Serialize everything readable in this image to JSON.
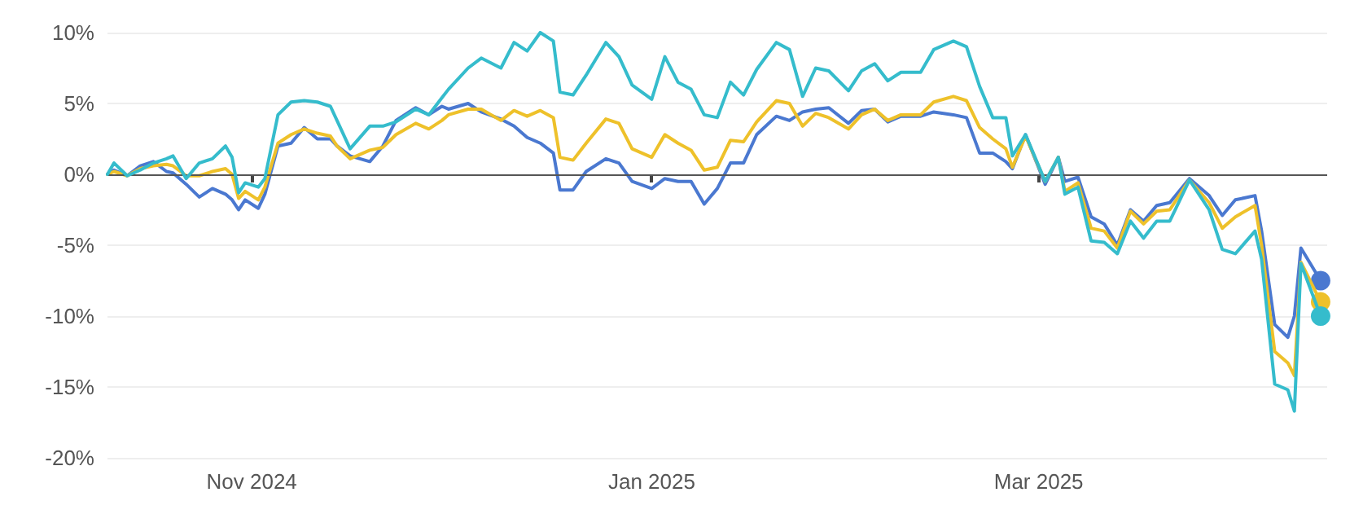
{
  "chart_data": {
    "type": "line",
    "x": [
      "2024-10-10",
      "2024-10-11",
      "2024-10-13",
      "2024-10-15",
      "2024-10-17",
      "2024-10-19",
      "2024-10-20",
      "2024-10-22",
      "2024-10-24",
      "2024-10-26",
      "2024-10-28",
      "2024-10-29",
      "2024-10-30",
      "2024-10-31",
      "2024-11-02",
      "2024-11-03",
      "2024-11-05",
      "2024-11-07",
      "2024-11-09",
      "2024-11-11",
      "2024-11-13",
      "2024-11-14",
      "2024-11-16",
      "2024-11-19",
      "2024-11-21",
      "2024-11-23",
      "2024-11-26",
      "2024-11-28",
      "2024-11-30",
      "2024-12-01",
      "2024-12-04",
      "2024-12-06",
      "2024-12-09",
      "2024-12-11",
      "2024-12-13",
      "2024-12-15",
      "2024-12-17",
      "2024-12-18",
      "2024-12-20",
      "2024-12-22",
      "2024-12-25",
      "2024-12-27",
      "2024-12-29",
      "2025-01-01",
      "2025-01-03",
      "2025-01-05",
      "2025-01-07",
      "2025-01-09",
      "2025-01-11",
      "2025-01-13",
      "2025-01-15",
      "2025-01-17",
      "2025-01-20",
      "2025-01-22",
      "2025-01-24",
      "2025-01-26",
      "2025-01-28",
      "2025-01-31",
      "2025-02-02",
      "2025-02-04",
      "2025-02-06",
      "2025-02-08",
      "2025-02-11",
      "2025-02-13",
      "2025-02-16",
      "2025-02-18",
      "2025-02-20",
      "2025-02-22",
      "2025-02-24",
      "2025-02-25",
      "2025-02-27",
      "2025-03-02",
      "2025-03-04",
      "2025-03-05",
      "2025-03-07",
      "2025-03-09",
      "2025-03-11",
      "2025-03-13",
      "2025-03-15",
      "2025-03-17",
      "2025-03-19",
      "2025-03-21",
      "2025-03-24",
      "2025-03-27",
      "2025-03-29",
      "2025-03-31",
      "2025-04-03",
      "2025-04-04",
      "2025-04-06",
      "2025-04-08",
      "2025-04-09",
      "2025-04-10",
      "2025-04-13"
    ],
    "series": [
      {
        "color": "#4a78d0",
        "values": [
          0,
          0.3,
          -0.1,
          0.6,
          0.9,
          0.2,
          0.1,
          -0.7,
          -1.6,
          -1.0,
          -1.4,
          -1.8,
          -2.5,
          -1.8,
          -2.4,
          -1.4,
          2.0,
          2.2,
          3.3,
          2.5,
          2.5,
          2.0,
          1.3,
          0.9,
          2.0,
          3.8,
          4.7,
          4.2,
          4.8,
          4.6,
          5.0,
          4.4,
          3.9,
          3.4,
          2.6,
          2.2,
          1.5,
          -1.1,
          -1.1,
          0.2,
          1.1,
          0.8,
          -0.5,
          -1.0,
          -0.3,
          -0.5,
          -0.5,
          -2.1,
          -1.0,
          0.8,
          0.8,
          2.8,
          4.1,
          3.8,
          4.4,
          4.6,
          4.7,
          3.6,
          4.5,
          4.6,
          3.7,
          4.1,
          4.1,
          4.4,
          4.2,
          4.0,
          1.5,
          1.5,
          0.9,
          0.4,
          2.8,
          -0.7,
          1.2,
          -0.5,
          -0.2,
          -3.0,
          -3.5,
          -5.0,
          -2.5,
          -3.3,
          -2.2,
          -2.0,
          -0.3,
          -1.5,
          -2.9,
          -1.8,
          -1.5,
          -4.0,
          -10.6,
          -11.5,
          -10.0,
          -5.2,
          -7.5
        ]
      },
      {
        "color": "#eec12a",
        "values": [
          0,
          0.2,
          -0.1,
          0.4,
          0.6,
          0.7,
          0.6,
          -0.1,
          -0.1,
          0.2,
          0.4,
          0.0,
          -1.7,
          -1.2,
          -1.8,
          -0.9,
          2.2,
          2.8,
          3.2,
          2.9,
          2.7,
          2.0,
          1.1,
          1.7,
          1.9,
          2.8,
          3.6,
          3.2,
          3.8,
          4.2,
          4.6,
          4.6,
          3.8,
          4.5,
          4.1,
          4.5,
          4.0,
          1.2,
          1.0,
          2.2,
          3.9,
          3.6,
          1.8,
          1.2,
          2.8,
          2.2,
          1.7,
          0.3,
          0.5,
          2.4,
          2.3,
          3.7,
          5.2,
          5.0,
          3.4,
          4.3,
          4.0,
          3.2,
          4.2,
          4.6,
          3.8,
          4.2,
          4.2,
          5.1,
          5.5,
          5.2,
          3.3,
          2.5,
          1.8,
          0.5,
          2.7,
          -0.5,
          1.2,
          -1.2,
          -0.6,
          -3.8,
          -4.0,
          -5.2,
          -2.6,
          -3.5,
          -2.6,
          -2.5,
          -0.4,
          -2.0,
          -3.8,
          -3.0,
          -2.2,
          -5.0,
          -12.5,
          -13.3,
          -14.2,
          -6.2,
          -9.0
        ]
      },
      {
        "color": "#35bccc",
        "values": [
          0,
          0.8,
          -0.1,
          0.3,
          0.8,
          1.1,
          1.3,
          -0.3,
          0.8,
          1.1,
          2.0,
          1.2,
          -1.3,
          -0.6,
          -0.9,
          -0.3,
          4.2,
          5.1,
          5.2,
          5.1,
          4.8,
          3.8,
          1.8,
          3.4,
          3.4,
          3.7,
          4.6,
          4.2,
          5.4,
          6.0,
          7.5,
          8.2,
          7.5,
          9.3,
          8.7,
          10.0,
          9.4,
          5.8,
          5.6,
          7.0,
          9.3,
          8.3,
          6.3,
          5.3,
          8.3,
          6.5,
          6.0,
          4.2,
          4.0,
          6.5,
          5.6,
          7.4,
          9.3,
          8.8,
          5.5,
          7.5,
          7.3,
          5.9,
          7.3,
          7.8,
          6.6,
          7.2,
          7.2,
          8.8,
          9.4,
          9.0,
          6.2,
          4.0,
          4.0,
          1.3,
          2.8,
          -0.5,
          1.2,
          -1.4,
          -0.9,
          -4.7,
          -4.8,
          -5.6,
          -3.3,
          -4.5,
          -3.3,
          -3.3,
          -0.4,
          -2.5,
          -5.3,
          -5.6,
          -4.0,
          -6.0,
          -14.8,
          -15.2,
          -16.7,
          -6.3,
          -10.0
        ]
      }
    ],
    "xlim": [
      "2024-10-10",
      "2025-04-14"
    ],
    "xticks": [
      {
        "value": "2024-11-01",
        "label": "Nov 2024"
      },
      {
        "value": "2025-01-01",
        "label": "Jan 2025"
      },
      {
        "value": "2025-03-01",
        "label": "Mar 2025"
      }
    ],
    "ylim": [
      -20,
      10
    ],
    "yticks": [
      {
        "value": -20,
        "label": "-20%"
      },
      {
        "value": -15,
        "label": "-15%"
      },
      {
        "value": -10,
        "label": "-10%"
      },
      {
        "value": -5,
        "label": "-5%"
      },
      {
        "value": 0,
        "label": "0%"
      },
      {
        "value": 5,
        "label": "5%"
      },
      {
        "value": 10,
        "label": "10%"
      }
    ],
    "ref_lines": [
      {
        "axis": "y",
        "value": 0,
        "color": "#555555"
      }
    ],
    "grid": "y",
    "line_style": "solid"
  }
}
